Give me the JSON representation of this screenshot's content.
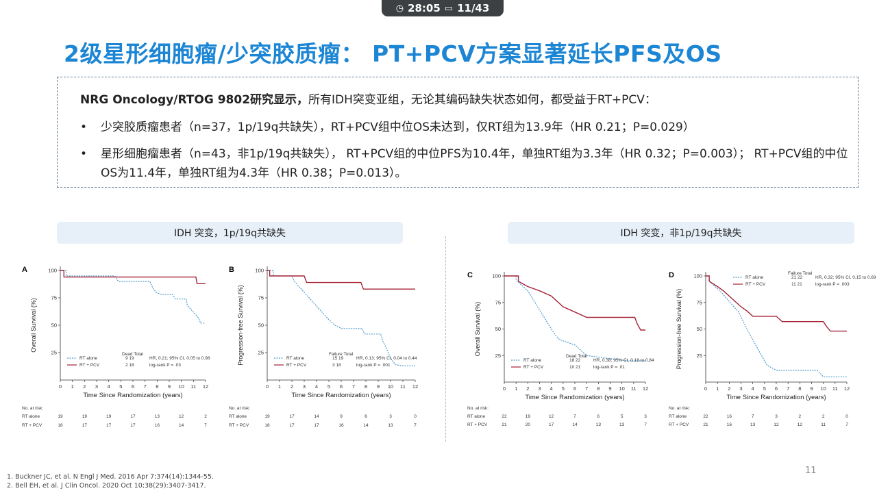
{
  "timer": {
    "clock_icon": "clock-icon",
    "time": "28:05",
    "slide_icon": "slide-icon",
    "slide": "11/43"
  },
  "title": "2级星形细胞瘤/少突胶质瘤： PT+PCV方案显著延长PFS及OS",
  "summary": {
    "intro_bold": "NRG Oncology/RTOG 9802研究显示，",
    "intro_rest": "所有IDH突变亚组，无论其编码缺失状态如何，都受益于RT+PCV：",
    "bullet1": "少突胶质瘤患者（n=37，1p/19q共缺失），RT+PCV组中位OS未达到，仅RT组为13.9年（HR 0.21；P=0.029）",
    "bullet2": "星形细胞瘤患者（n=43，非1p/19q共缺失）， RT+PCV组的中位PFS为10.4年，单独RT组为3.3年（HR 0.32；P=0.003）； RT+PCV组的中位OS为11.4年，单独RT组为4.3年（HR 0.38；P=0.013）。"
  },
  "banner_left": "IDH 突变，1p/19q共缺失",
  "banner_right": "IDH 突变，非1p/19q共缺失",
  "colors": {
    "title": "#1c86d4",
    "rt_alone": "#4f9ccd",
    "rt_pcv": "#a52237"
  },
  "chart_data": [
    {
      "type": "line",
      "panel": "A",
      "ylabel": "Overall Survival (%)",
      "xlabel": "Time Since Randomization (years)",
      "xlim": [
        0,
        12
      ],
      "ylim": [
        0,
        100
      ],
      "yticks": [
        25,
        50,
        75,
        100
      ],
      "legend_header": [
        "Dead",
        "Total"
      ],
      "series": [
        {
          "name": "RT alone",
          "dead": "9",
          "total": "19",
          "note": "HR, 0.21; 95% CI, 0.05 to 0.98",
          "points": [
            [
              0,
              100
            ],
            [
              0.5,
              100
            ],
            [
              0.5,
              95
            ],
            [
              4.5,
              95
            ],
            [
              4.8,
              90
            ],
            [
              7.4,
              90
            ],
            [
              7.6,
              85
            ],
            [
              7.9,
              80
            ],
            [
              8.4,
              78
            ],
            [
              9.3,
              78
            ],
            [
              9.5,
              74
            ],
            [
              10.4,
              74
            ],
            [
              10.5,
              68
            ],
            [
              11,
              62
            ],
            [
              11.4,
              57
            ],
            [
              11.6,
              52
            ],
            [
              12,
              52
            ]
          ]
        },
        {
          "name": "RT + PCV",
          "dead": "2",
          "total": "18",
          "note": "log-rank P = .03",
          "points": [
            [
              0,
              100
            ],
            [
              0.3,
              100
            ],
            [
              0.3,
              94
            ],
            [
              11.2,
              94
            ],
            [
              11.3,
              88
            ],
            [
              12,
              88
            ]
          ]
        }
      ],
      "risk": {
        "RT alone": [
          "19",
          "19",
          "19",
          "17",
          "13",
          "12",
          "2"
        ],
        "RT + PCV": [
          "18",
          "17",
          "17",
          "17",
          "16",
          "14",
          "7"
        ]
      }
    },
    {
      "type": "line",
      "panel": "B",
      "ylabel": "Progression-free Survival (%)",
      "xlabel": "Time Since Randomization (years)",
      "xlim": [
        0,
        12
      ],
      "ylim": [
        0,
        100
      ],
      "yticks": [
        25,
        50,
        75,
        100
      ],
      "legend_header": [
        "Failure",
        "Total"
      ],
      "series": [
        {
          "name": "RT alone",
          "dead": "15",
          "total": "19",
          "note": "HR, 0.13; 95% CI, 0.04 to 0.44",
          "points": [
            [
              0,
              100
            ],
            [
              0.5,
              100
            ],
            [
              0.5,
              95
            ],
            [
              2,
              95
            ],
            [
              2.2,
              90
            ],
            [
              2.6,
              85
            ],
            [
              3,
              80
            ],
            [
              3.4,
              75
            ],
            [
              3.8,
              70
            ],
            [
              4.2,
              65
            ],
            [
              4.6,
              60
            ],
            [
              5,
              55
            ],
            [
              5.5,
              50
            ],
            [
              6,
              47
            ],
            [
              7.7,
              47
            ],
            [
              7.9,
              42
            ],
            [
              9.2,
              42
            ],
            [
              9.4,
              35
            ],
            [
              9.7,
              28
            ],
            [
              10,
              20
            ],
            [
              10.4,
              14
            ],
            [
              11,
              13
            ],
            [
              12,
              13
            ]
          ]
        },
        {
          "name": "RT + PCV",
          "dead": "3",
          "total": "18",
          "note": "log-rank P = .001",
          "points": [
            [
              0,
              100
            ],
            [
              0.2,
              100
            ],
            [
              0.2,
              95
            ],
            [
              3,
              95
            ],
            [
              3.2,
              89
            ],
            [
              7.6,
              89
            ],
            [
              7.8,
              83
            ],
            [
              12,
              83
            ]
          ]
        }
      ],
      "risk": {
        "RT alone": [
          "19",
          "17",
          "14",
          "9",
          "6",
          "3",
          "0"
        ],
        "RT + PCV": [
          "18",
          "17",
          "17",
          "16",
          "14",
          "13",
          "7"
        ]
      }
    },
    {
      "type": "line",
      "panel": "C",
      "ylabel": "Overall Survival (%)",
      "xlabel": "Time Since Randomization (years)",
      "xlim": [
        0,
        12
      ],
      "ylim": [
        0,
        100
      ],
      "yticks": [
        25,
        50,
        75,
        100
      ],
      "legend_header": [
        "Dead",
        "Total"
      ],
      "series": [
        {
          "name": "RT alone",
          "dead": "18",
          "total": "22",
          "note": "HR, 0.38; 95% CI, 0.18 to 0.84",
          "points": [
            [
              0,
              100
            ],
            [
              1,
              100
            ],
            [
              1,
              96
            ],
            [
              1.5,
              91
            ],
            [
              2,
              86
            ],
            [
              2.5,
              77
            ],
            [
              3,
              68
            ],
            [
              3.5,
              59
            ],
            [
              4,
              50
            ],
            [
              4.3,
              45
            ],
            [
              4.7,
              40
            ],
            [
              6,
              35
            ],
            [
              6.5,
              30
            ],
            [
              7,
              25
            ],
            [
              10.5,
              20
            ],
            [
              12,
              20
            ]
          ]
        },
        {
          "name": "RT + PCV",
          "dead": "10",
          "total": "21",
          "note": "log-rank P = .01",
          "points": [
            [
              0,
              100
            ],
            [
              1.2,
              100
            ],
            [
              1.2,
              95
            ],
            [
              2,
              90
            ],
            [
              3,
              86
            ],
            [
              4,
              81
            ],
            [
              5,
              71
            ],
            [
              6,
              66
            ],
            [
              7,
              61
            ],
            [
              11.1,
              61
            ],
            [
              11.3,
              55
            ],
            [
              11.6,
              49
            ],
            [
              12,
              49
            ]
          ]
        }
      ],
      "risk": {
        "RT alone": [
          "22",
          "19",
          "12",
          "7",
          "6",
          "5",
          "3"
        ],
        "RT + PCV": [
          "21",
          "20",
          "17",
          "14",
          "13",
          "13",
          "7"
        ]
      }
    },
    {
      "type": "line",
      "panel": "D",
      "ylabel": "Progression-free Survival (%)",
      "xlabel": "Time Since Randomization (years)",
      "xlim": [
        0,
        12
      ],
      "ylim": [
        0,
        100
      ],
      "yticks": [
        25,
        50,
        75,
        100
      ],
      "legend_header": [
        "Failure",
        "Total"
      ],
      "series": [
        {
          "name": "RT alone",
          "dead": "21",
          "total": "22",
          "note": "HR, 0.32; 95% CI, 0.15 to 0.69",
          "points": [
            [
              0,
              100
            ],
            [
              0.3,
              100
            ],
            [
              0.3,
              95
            ],
            [
              0.8,
              90
            ],
            [
              1.2,
              86
            ],
            [
              1.6,
              81
            ],
            [
              2,
              76
            ],
            [
              2.4,
              71
            ],
            [
              2.8,
              66
            ],
            [
              3.2,
              57
            ],
            [
              3.6,
              48
            ],
            [
              4,
              40
            ],
            [
              4.4,
              32
            ],
            [
              4.8,
              24
            ],
            [
              5.2,
              16
            ],
            [
              6,
              11
            ],
            [
              9.5,
              11
            ],
            [
              10,
              5
            ],
            [
              12,
              5
            ]
          ]
        },
        {
          "name": "RT + PCV",
          "dead": "11",
          "total": "21",
          "note": "log-rank P = .003",
          "points": [
            [
              0,
              100
            ],
            [
              0.3,
              100
            ],
            [
              0.3,
              95
            ],
            [
              1,
              90
            ],
            [
              1.5,
              86
            ],
            [
              2,
              81
            ],
            [
              3,
              71
            ],
            [
              3.5,
              67
            ],
            [
              4,
              62
            ],
            [
              6,
              62
            ],
            [
              6.5,
              57
            ],
            [
              10,
              57
            ],
            [
              10.3,
              52
            ],
            [
              10.6,
              48
            ],
            [
              12,
              48
            ]
          ]
        }
      ],
      "risk": {
        "RT alone": [
          "22",
          "16",
          "7",
          "3",
          "2",
          "2",
          "0"
        ],
        "RT + PCV": [
          "21",
          "16",
          "13",
          "12",
          "12",
          "11",
          "7"
        ]
      }
    }
  ],
  "risk_label": "No. at risk:",
  "footnotes": [
    "1. Buckner JC, et al. N Engl J Med. 2016 Apr 7;374(14):1344-55.",
    "2. Bell EH, et al. J Clin Oncol. 2020 Oct 10;38(29):3407-3417."
  ],
  "page_number": "11"
}
